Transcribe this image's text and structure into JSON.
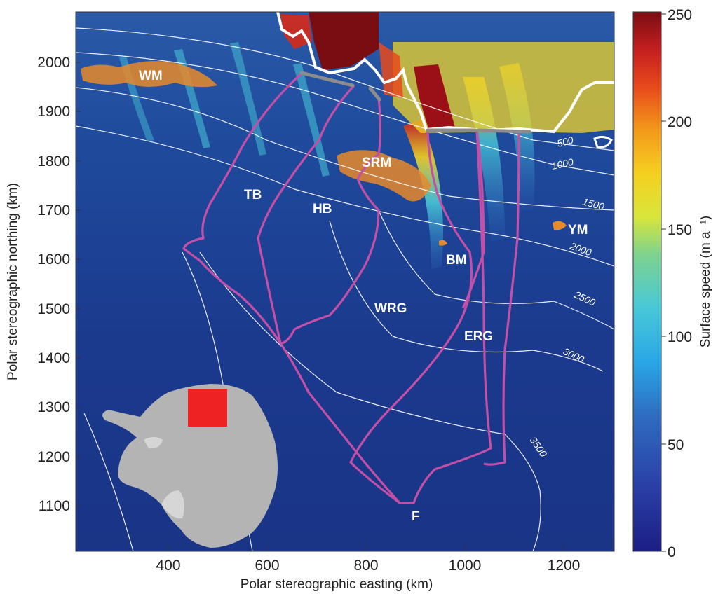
{
  "map": {
    "xlabel": "Polar stereographic easting (km)",
    "ylabel": "Polar stereographic northing (km)",
    "x_ticks": [
      "400",
      "600",
      "800",
      "1000",
      "1200"
    ],
    "y_ticks": [
      "2000",
      "1900",
      "1800",
      "1700",
      "1600",
      "1500",
      "1400",
      "1300",
      "1200",
      "1100"
    ],
    "x_range_km": [
      210,
      1300
    ],
    "y_range_km": [
      1010,
      2100
    ],
    "region_labels": [
      "WM",
      "SRM",
      "TB",
      "HB",
      "BM",
      "YM",
      "WRG",
      "ERG",
      "F"
    ],
    "contour_labels": [
      "500",
      "1000",
      "1500",
      "2000",
      "2500",
      "3000",
      "3500"
    ],
    "colors": {
      "basin_outline": "#c34fa6",
      "grounding_gates": "#8c8c8c",
      "contours": "#ffffff",
      "background_ice": "#1e3c8c"
    }
  },
  "colorbar": {
    "label": "Surface speed (m a⁻¹)",
    "ticks": [
      "250",
      "200",
      "150",
      "100",
      "50",
      "0"
    ],
    "range": [
      0,
      250
    ],
    "colormap": "jet"
  },
  "inset": {
    "description_color_land": "#b4b4b4",
    "highlight_color": "#ee2222"
  }
}
